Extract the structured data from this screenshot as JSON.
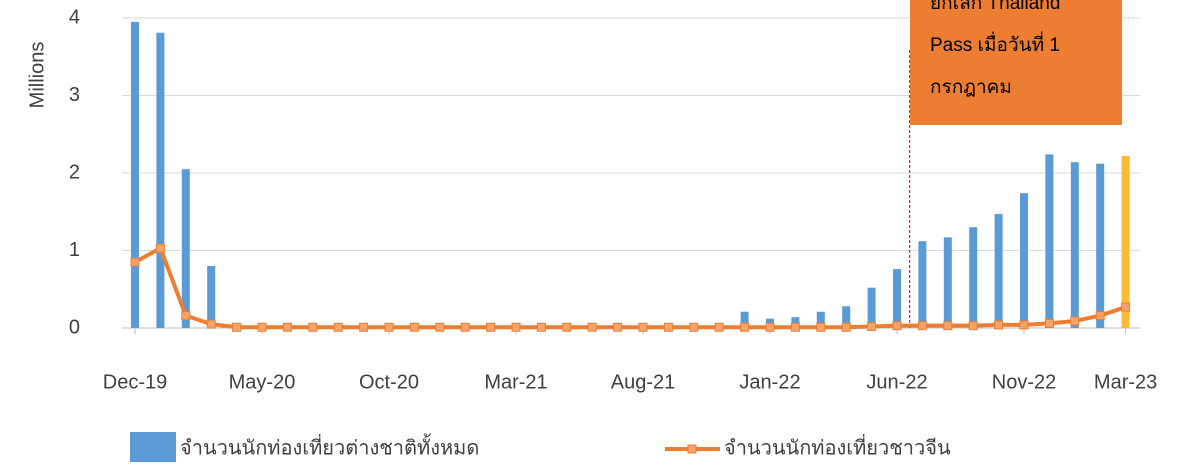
{
  "chart_data": {
    "type": "bar_line",
    "y_label": "Millions",
    "categories": [
      "Dec-19",
      null,
      null,
      null,
      null,
      "May-20",
      null,
      null,
      null,
      null,
      "Oct-20",
      null,
      null,
      null,
      null,
      "Mar-21",
      null,
      null,
      null,
      null,
      "Aug-21",
      null,
      null,
      null,
      null,
      "Jan-22",
      null,
      null,
      null,
      null,
      "Jun-22",
      null,
      null,
      null,
      null,
      "Nov-22",
      null,
      null,
      null,
      "Mar-23"
    ],
    "series": [
      {
        "name": "จำนวนนักท่องเที่ยวต่างชาติทั้งหมด",
        "kind": "bar",
        "color": "#5b9bd5",
        "colors": [
          "#5b9bd5",
          "#5b9bd5",
          "#5b9bd5",
          "#5b9bd5",
          "#5b9bd5",
          "#5b9bd5",
          "#5b9bd5",
          "#5b9bd5",
          "#5b9bd5",
          "#5b9bd5",
          "#5b9bd5",
          "#5b9bd5",
          "#5b9bd5",
          "#5b9bd5",
          "#5b9bd5",
          "#5b9bd5",
          "#5b9bd5",
          "#5b9bd5",
          "#5b9bd5",
          "#5b9bd5",
          "#5b9bd5",
          "#5b9bd5",
          "#5b9bd5",
          "#5b9bd5",
          "#5b9bd5",
          "#5b9bd5",
          "#5b9bd5",
          "#5b9bd5",
          "#5b9bd5",
          "#5b9bd5",
          "#5b9bd5",
          "#5b9bd5",
          "#5b9bd5",
          "#5b9bd5",
          "#5b9bd5",
          "#5b9bd5",
          "#5b9bd5",
          "#5b9bd5",
          "#5b9bd5",
          "#fbbc33"
        ],
        "values": [
          3.95,
          3.81,
          2.05,
          0.8,
          0.01,
          0.01,
          0.01,
          0.01,
          0.01,
          0.01,
          0.01,
          0.01,
          0.01,
          0.01,
          0.01,
          0.01,
          0.01,
          0.01,
          0.01,
          0.01,
          0.01,
          0.01,
          0.01,
          0.06,
          0.21,
          0.12,
          0.14,
          0.21,
          0.28,
          0.52,
          0.76,
          1.12,
          1.17,
          1.3,
          1.47,
          1.74,
          2.24,
          2.14,
          2.12,
          2.22
        ]
      },
      {
        "name": "จำนวนนักท่องเที่ยวชาวจีน",
        "kind": "line",
        "color": "#ed7d31",
        "marker_color": "#f4a46a",
        "values": [
          0.85,
          1.03,
          0.16,
          0.05,
          0.01,
          0.01,
          0.01,
          0.01,
          0.01,
          0.01,
          0.01,
          0.01,
          0.01,
          0.01,
          0.01,
          0.01,
          0.01,
          0.01,
          0.01,
          0.01,
          0.01,
          0.01,
          0.01,
          0.01,
          0.01,
          0.01,
          0.01,
          0.01,
          0.01,
          0.02,
          0.03,
          0.03,
          0.03,
          0.03,
          0.04,
          0.04,
          0.06,
          0.09,
          0.16,
          0.27
        ]
      }
    ],
    "ylim": [
      0,
      4
    ],
    "yticks": [
      0,
      1,
      2,
      3,
      4
    ],
    "grid": true,
    "annotation": {
      "lines": [
        "ยกเลิก Thailand",
        "Pass เมื่อวันที่ 1",
        "กรกฎาคม"
      ],
      "color": "#ed7d31",
      "line_color": "#c00000"
    },
    "legend": "bottom"
  }
}
